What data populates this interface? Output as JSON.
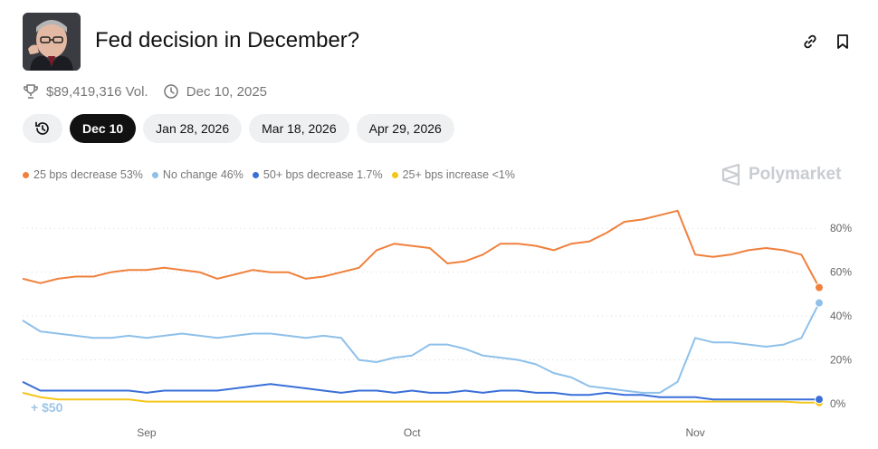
{
  "header": {
    "title": "Fed decision in December?",
    "avatar_alt": "Fed chair portrait"
  },
  "meta": {
    "volume": "$89,419,316 Vol.",
    "date": "Dec 10, 2025"
  },
  "tabs": [
    {
      "label": "Dec 10",
      "active": true
    },
    {
      "label": "Jan 28, 2026",
      "active": false
    },
    {
      "label": "Mar 18, 2026",
      "active": false
    },
    {
      "label": "Apr 29, 2026",
      "active": false
    }
  ],
  "legend": [
    {
      "label": "25 bps decrease 53%",
      "color": "#f0803c"
    },
    {
      "label": "No change 46%",
      "color": "#8ec0ea"
    },
    {
      "label": "50+ bps decrease 1.7%",
      "color": "#3a6fd8"
    },
    {
      "label": "25+ bps increase <1%",
      "color": "#f5c518"
    }
  ],
  "brand": "Polymarket",
  "bet_label": "+ $50",
  "chart_data": {
    "type": "line",
    "x_ticks": [
      "Sep",
      "Oct",
      "Nov"
    ],
    "y_ticks": [
      "80%",
      "60%",
      "40%",
      "20%",
      "0%"
    ],
    "ylim": [
      0,
      90
    ],
    "grid": true,
    "x": [
      "Aug 20",
      "Aug 21",
      "Aug 23",
      "Aug 25",
      "Aug 26",
      "Aug 28",
      "Aug 30",
      "Sep 1",
      "Sep 3",
      "Sep 5",
      "Sep 7",
      "Sep 9",
      "Sep 11",
      "Sep 13",
      "Sep 15",
      "Sep 17",
      "Sep 19",
      "Sep 21",
      "Sep 23",
      "Sep 25",
      "Sep 27",
      "Sep 29",
      "Oct 1",
      "Oct 3",
      "Oct 5",
      "Oct 7",
      "Oct 9",
      "Oct 11",
      "Oct 13",
      "Oct 15",
      "Oct 17",
      "Oct 19",
      "Oct 21",
      "Oct 23",
      "Oct 25",
      "Oct 27",
      "Oct 29",
      "Oct 31",
      "Nov 2",
      "Nov 4",
      "Nov 6",
      "Nov 8",
      "Nov 10",
      "Nov 12",
      "Nov 14",
      "Nov 15"
    ],
    "series": [
      {
        "name": "25 bps decrease",
        "color": "#f0803c",
        "values": [
          57,
          55,
          57,
          58,
          58,
          60,
          61,
          61,
          62,
          61,
          60,
          57,
          59,
          61,
          60,
          60,
          57,
          58,
          60,
          62,
          70,
          73,
          72,
          71,
          64,
          65,
          68,
          73,
          73,
          72,
          70,
          73,
          74,
          78,
          83,
          84,
          86,
          88,
          68,
          67,
          68,
          70,
          71,
          70,
          68,
          53
        ]
      },
      {
        "name": "No change",
        "color": "#8ec0ea",
        "values": [
          38,
          33,
          32,
          31,
          30,
          30,
          31,
          30,
          31,
          32,
          31,
          30,
          31,
          32,
          32,
          31,
          30,
          31,
          30,
          20,
          19,
          21,
          22,
          27,
          27,
          25,
          22,
          21,
          20,
          18,
          14,
          12,
          8,
          7,
          6,
          5,
          5,
          10,
          30,
          28,
          28,
          27,
          26,
          27,
          30,
          46
        ]
      },
      {
        "name": "50+ bps decrease",
        "color": "#3a6fd8",
        "values": [
          10,
          6,
          6,
          6,
          6,
          6,
          6,
          5,
          6,
          6,
          6,
          6,
          7,
          8,
          9,
          8,
          7,
          6,
          5,
          6,
          6,
          5,
          6,
          5,
          5,
          6,
          5,
          6,
          6,
          5,
          5,
          4,
          4,
          5,
          4,
          4,
          3,
          3,
          3,
          2,
          2,
          2,
          2,
          2,
          2,
          2
        ]
      },
      {
        "name": "25+ bps increase",
        "color": "#f5c518",
        "values": [
          5,
          3,
          2,
          2,
          2,
          2,
          2,
          1,
          1,
          1,
          1,
          1,
          1,
          1,
          1,
          1,
          1,
          1,
          1,
          1,
          1,
          1,
          1,
          1,
          1,
          1,
          1,
          1,
          1,
          1,
          1,
          1,
          1,
          1,
          1,
          1,
          1,
          1,
          1,
          1,
          1,
          1,
          1,
          1,
          0.5,
          0.5
        ]
      }
    ]
  }
}
